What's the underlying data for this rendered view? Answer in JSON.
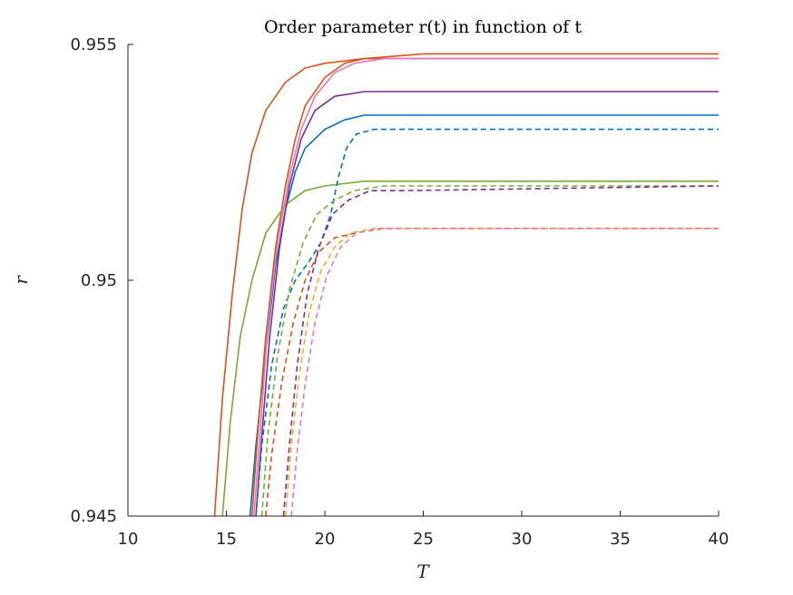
{
  "chart_data": {
    "type": "line",
    "title": "Order parameter r(t) in function of t",
    "xlabel": "T",
    "ylabel": "r",
    "xlim": [
      10,
      40
    ],
    "ylim": [
      0.945,
      0.955
    ],
    "xticks": [
      "10",
      "15",
      "20",
      "25",
      "30",
      "35",
      "40"
    ],
    "yticks": [
      "0.945",
      "0.95",
      "0.955"
    ],
    "grid": false,
    "series": [
      {
        "color": "#0072BD",
        "dash": false,
        "values": [
          [
            16.2,
            0.945
          ],
          [
            16.5,
            0.9465
          ],
          [
            17.0,
            0.9485
          ],
          [
            17.5,
            0.9503
          ],
          [
            18.0,
            0.9515
          ],
          [
            18.5,
            0.9523
          ],
          [
            19.0,
            0.9528
          ],
          [
            20.0,
            0.9532
          ],
          [
            21.0,
            0.9534
          ],
          [
            22.0,
            0.9535
          ],
          [
            25.0,
            0.9535
          ],
          [
            40.0,
            0.9535
          ]
        ]
      },
      {
        "color": "#D95319",
        "dash": false,
        "values": [
          [
            16.3,
            0.945
          ],
          [
            16.6,
            0.9468
          ],
          [
            17.0,
            0.9488
          ],
          [
            17.5,
            0.9507
          ],
          [
            18.0,
            0.952
          ],
          [
            18.5,
            0.953
          ],
          [
            19.0,
            0.9537
          ],
          [
            20.0,
            0.9543
          ],
          [
            21.0,
            0.9546
          ],
          [
            22.0,
            0.9547
          ],
          [
            25.0,
            0.9548
          ],
          [
            40.0,
            0.9548
          ]
        ]
      },
      {
        "color": "#D95319",
        "dash": false,
        "values": [
          [
            14.4,
            0.945
          ],
          [
            14.8,
            0.9475
          ],
          [
            15.3,
            0.9497
          ],
          [
            15.8,
            0.9515
          ],
          [
            16.3,
            0.9527
          ],
          [
            17.0,
            0.9536
          ],
          [
            18.0,
            0.9542
          ],
          [
            19.0,
            0.9545
          ],
          [
            20.0,
            0.9546
          ],
          [
            22.0,
            0.9547
          ],
          [
            25.0,
            0.9547
          ],
          [
            40.0,
            0.9547
          ]
        ]
      },
      {
        "color": "#77AC30",
        "dash": false,
        "values": [
          [
            14.8,
            0.945
          ],
          [
            15.2,
            0.947
          ],
          [
            15.7,
            0.9488
          ],
          [
            16.3,
            0.95
          ],
          [
            17.0,
            0.951
          ],
          [
            18.0,
            0.9516
          ],
          [
            19.0,
            0.9519
          ],
          [
            20.0,
            0.952
          ],
          [
            22.0,
            0.9521
          ],
          [
            25.0,
            0.9521
          ],
          [
            40.0,
            0.9521
          ]
        ]
      },
      {
        "color": "#7E2F8E",
        "dash": false,
        "values": [
          [
            16.5,
            0.945
          ],
          [
            16.8,
            0.9467
          ],
          [
            17.2,
            0.9488
          ],
          [
            17.7,
            0.9507
          ],
          [
            18.2,
            0.952
          ],
          [
            18.8,
            0.953
          ],
          [
            19.5,
            0.9536
          ],
          [
            20.5,
            0.9539
          ],
          [
            22.0,
            0.954
          ],
          [
            25.0,
            0.954
          ],
          [
            40.0,
            0.954
          ]
        ]
      },
      {
        "color": "#E377C2",
        "dash": false,
        "values": [
          [
            16.4,
            0.945
          ],
          [
            16.7,
            0.9467
          ],
          [
            17.1,
            0.949
          ],
          [
            17.6,
            0.9508
          ],
          [
            18.2,
            0.9522
          ],
          [
            18.8,
            0.9532
          ],
          [
            19.5,
            0.9539
          ],
          [
            20.5,
            0.9544
          ],
          [
            21.5,
            0.9546
          ],
          [
            23.0,
            0.9547
          ],
          [
            40.0,
            0.9547
          ]
        ]
      },
      {
        "color": "#0072BD",
        "dash": true,
        "values": [
          [
            16.5,
            0.945
          ],
          [
            16.8,
            0.9465
          ],
          [
            17.3,
            0.9482
          ],
          [
            17.9,
            0.9494
          ],
          [
            18.5,
            0.95
          ],
          [
            19.2,
            0.9504
          ],
          [
            19.8,
            0.9508
          ],
          [
            20.3,
            0.9514
          ],
          [
            20.7,
            0.9522
          ],
          [
            21.1,
            0.9528
          ],
          [
            21.6,
            0.9531
          ],
          [
            22.5,
            0.9532
          ],
          [
            25.0,
            0.9532
          ],
          [
            40.0,
            0.9532
          ]
        ]
      },
      {
        "color": "#D95319",
        "dash": true,
        "values": [
          [
            17.0,
            0.945
          ],
          [
            17.3,
            0.9463
          ],
          [
            17.8,
            0.9478
          ],
          [
            18.4,
            0.9491
          ],
          [
            19.0,
            0.95
          ],
          [
            19.7,
            0.9506
          ],
          [
            20.5,
            0.9509
          ],
          [
            21.5,
            0.951
          ],
          [
            23.0,
            0.9511
          ],
          [
            40.0,
            0.9511
          ]
        ]
      },
      {
        "color": "#EDB120",
        "dash": true,
        "values": [
          [
            18.0,
            0.945
          ],
          [
            18.3,
            0.9465
          ],
          [
            18.7,
            0.948
          ],
          [
            19.2,
            0.9493
          ],
          [
            19.8,
            0.9502
          ],
          [
            20.5,
            0.9507
          ],
          [
            21.3,
            0.951
          ],
          [
            22.5,
            0.9511
          ],
          [
            40.0,
            0.9511
          ]
        ]
      },
      {
        "color": "#77AC30",
        "dash": true,
        "values": [
          [
            16.8,
            0.945
          ],
          [
            17.1,
            0.9467
          ],
          [
            17.6,
            0.9484
          ],
          [
            18.2,
            0.9498
          ],
          [
            18.9,
            0.9508
          ],
          [
            19.6,
            0.9514
          ],
          [
            20.5,
            0.9517
          ],
          [
            21.5,
            0.9519
          ],
          [
            23.0,
            0.952
          ],
          [
            40.0,
            0.952
          ]
        ]
      },
      {
        "color": "#7E2F8E",
        "dash": true,
        "values": [
          [
            17.9,
            0.945
          ],
          [
            18.2,
            0.9465
          ],
          [
            18.6,
            0.9482
          ],
          [
            19.1,
            0.9497
          ],
          [
            19.7,
            0.9507
          ],
          [
            20.4,
            0.9514
          ],
          [
            21.2,
            0.9517
          ],
          [
            22.3,
            0.9519
          ],
          [
            24.0,
            0.9519
          ],
          [
            40.0,
            0.952
          ]
        ]
      },
      {
        "color": "#E377C2",
        "dash": true,
        "values": [
          [
            18.3,
            0.945
          ],
          [
            18.6,
            0.9464
          ],
          [
            19.0,
            0.9478
          ],
          [
            19.5,
            0.9491
          ],
          [
            20.1,
            0.9501
          ],
          [
            20.8,
            0.9507
          ],
          [
            21.6,
            0.951
          ],
          [
            22.8,
            0.9511
          ],
          [
            40.0,
            0.9511
          ]
        ]
      }
    ]
  }
}
